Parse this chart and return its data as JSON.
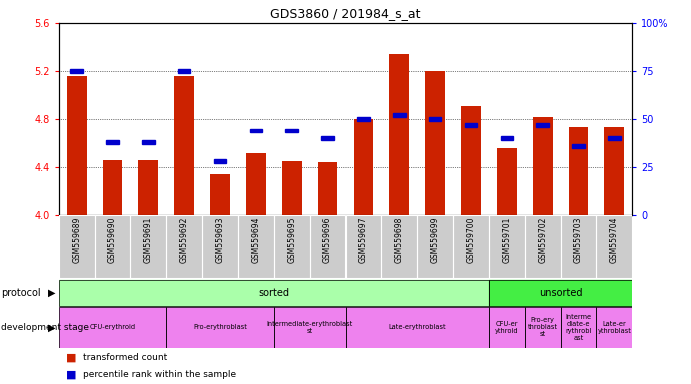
{
  "title": "GDS3860 / 201984_s_at",
  "samples": [
    "GSM559689",
    "GSM559690",
    "GSM559691",
    "GSM559692",
    "GSM559693",
    "GSM559694",
    "GSM559695",
    "GSM559696",
    "GSM559697",
    "GSM559698",
    "GSM559699",
    "GSM559700",
    "GSM559701",
    "GSM559702",
    "GSM559703",
    "GSM559704"
  ],
  "transformed_count": [
    5.16,
    4.46,
    4.46,
    5.16,
    4.34,
    4.52,
    4.45,
    4.44,
    4.8,
    5.34,
    5.2,
    4.91,
    4.56,
    4.82,
    4.73,
    4.73
  ],
  "percentile_rank_pct": [
    75,
    38,
    38,
    75,
    28,
    44,
    44,
    40,
    50,
    52,
    50,
    47,
    40,
    47,
    36,
    40
  ],
  "ylim_left": [
    4.0,
    5.6
  ],
  "ylim_right": [
    0,
    100
  ],
  "yticks_left": [
    4.0,
    4.4,
    4.8,
    5.2,
    5.6
  ],
  "yticks_right": [
    0,
    25,
    50,
    75,
    100
  ],
  "bar_color": "#cc2200",
  "square_color": "#0000cc",
  "baseline": 4.0,
  "n_sorted": 12,
  "n_total": 16,
  "protocol_sorted_color": "#aaffaa",
  "protocol_unsorted_color": "#44ee44",
  "dev_groups_sorted": [
    {
      "label": "CFU-erythroid",
      "start": 0,
      "end": 3
    },
    {
      "label": "Pro-erythroblast",
      "start": 3,
      "end": 6
    },
    {
      "label": "Intermediate-erythroblast\nst",
      "start": 6,
      "end": 8
    },
    {
      "label": "Late-erythroblast",
      "start": 8,
      "end": 12
    }
  ],
  "dev_groups_unsorted": [
    {
      "label": "CFU-er\nythroid",
      "start": 12,
      "end": 13
    },
    {
      "label": "Pro-ery\nthroblast\nst",
      "start": 13,
      "end": 14
    },
    {
      "label": "Interme\ndiate-e\nrythrobl\nast",
      "start": 14,
      "end": 15
    },
    {
      "label": "Late-er\nythroblast",
      "start": 15,
      "end": 16
    }
  ],
  "dev_stage_color": "#ee82ee",
  "xticklabel_bg": "#cccccc"
}
